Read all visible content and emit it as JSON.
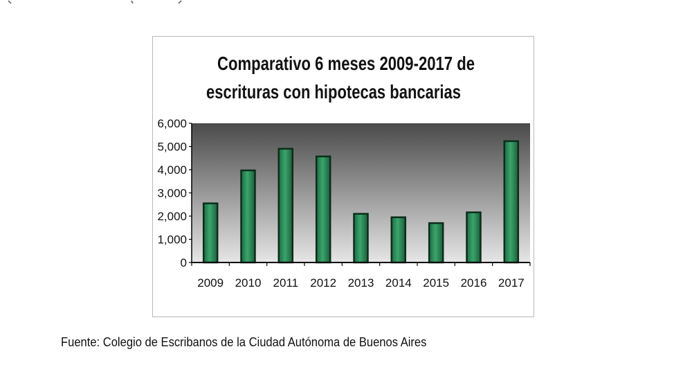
{
  "chart_data": {
    "type": "bar",
    "title": [
      "Comparativo 6 meses 2009-2017 de",
      "escrituras con hipotecas bancarias"
    ],
    "categories": [
      "2009",
      "2010",
      "2011",
      "2012",
      "2013",
      "2014",
      "2015",
      "2016",
      "2017"
    ],
    "values": [
      2550,
      3970,
      4900,
      4570,
      2100,
      1950,
      1700,
      2160,
      5230
    ],
    "ylim": [
      0,
      6000
    ],
    "yticks": [
      0,
      1000,
      2000,
      3000,
      4000,
      5000,
      6000
    ],
    "ytick_labels": [
      "0",
      "1,000",
      "2,000",
      "3,000",
      "4,000",
      "5,000",
      "6,000"
    ],
    "xlabel": "",
    "ylabel": "",
    "grid": false,
    "legend": "none",
    "bar_color": "#2e8b57",
    "bar_edge_color": "#0b2d1a",
    "plot_bg_top": "#4a4a4a",
    "plot_bg_bottom": "#e6e6e6"
  },
  "footer": {
    "source": "Fuente: Colegio de Escribanos de la Ciudad Autónoma de Buenos Aires"
  }
}
